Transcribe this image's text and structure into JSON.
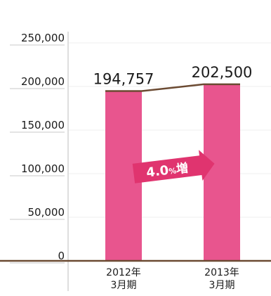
{
  "colors": {
    "bar": "#e8558e",
    "badge": "#e0346f",
    "connector": "#6b4a32",
    "baseline": "#6b4a32",
    "text": "#1a1a1a",
    "grid": "#efefef",
    "axis": "#bdbdbd"
  },
  "chart_data": {
    "type": "bar",
    "categories": [
      "2012年\n3月期",
      "2013年\n3月期"
    ],
    "values": [
      194757,
      202500
    ],
    "data_labels": [
      "194,757",
      "202,500"
    ],
    "ylim": [
      0,
      250000
    ],
    "yticks": [
      0,
      50000,
      100000,
      150000,
      200000,
      250000
    ],
    "ytick_labels": [
      "0",
      "50,000",
      "100,000",
      "150,000",
      "200,000",
      "250,000"
    ],
    "grid": true,
    "annotation": {
      "value": "4.0",
      "unit": "%",
      "suffix": "増"
    }
  }
}
